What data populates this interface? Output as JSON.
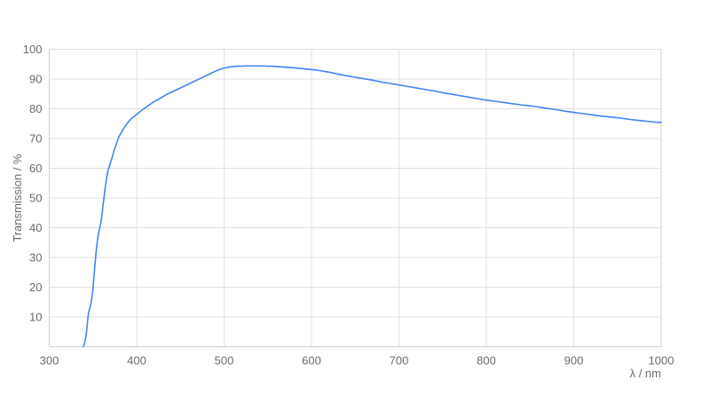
{
  "chart_data": {
    "type": "line",
    "title": "",
    "xlabel": "λ / nm",
    "ylabel": "Transmission / %",
    "xlim": [
      300,
      1000
    ],
    "ylim": [
      0,
      100
    ],
    "x_ticks": [
      300,
      400,
      500,
      600,
      700,
      800,
      900,
      1000
    ],
    "y_ticks": [
      10,
      20,
      30,
      40,
      50,
      60,
      70,
      80,
      90,
      100
    ],
    "grid": true,
    "legend": false,
    "colors": {
      "line": "#4285f4",
      "grid": "#e0e0e0",
      "axis_border": "#cfcfcf",
      "tick_text": "#6b6b6b",
      "background": "#ffffff"
    },
    "series": [
      {
        "name": "Transmission",
        "points": [
          [
            339,
            0
          ],
          [
            340,
            0.8
          ],
          [
            341,
            2
          ],
          [
            342,
            3.5
          ],
          [
            343,
            6
          ],
          [
            344,
            9
          ],
          [
            345,
            11.5
          ],
          [
            346,
            12.6
          ],
          [
            347,
            13.6
          ],
          [
            348,
            15
          ],
          [
            349,
            17
          ],
          [
            350,
            19.5
          ],
          [
            351,
            23
          ],
          [
            352,
            26.5
          ],
          [
            353,
            30
          ],
          [
            354,
            33
          ],
          [
            355,
            35.5
          ],
          [
            356,
            37.5
          ],
          [
            357,
            39
          ],
          [
            358,
            40.3
          ],
          [
            359,
            41.6
          ],
          [
            360,
            43.8
          ],
          [
            361,
            46.3
          ],
          [
            362,
            48.7
          ],
          [
            363,
            51
          ],
          [
            364,
            53.5
          ],
          [
            365,
            55.5
          ],
          [
            366,
            57.3
          ],
          [
            367,
            58.9
          ],
          [
            368,
            59.9
          ],
          [
            369,
            60.9
          ],
          [
            370,
            61.8
          ],
          [
            372,
            63.7
          ],
          [
            374,
            65.8
          ],
          [
            376,
            67.5
          ],
          [
            378,
            69.2
          ],
          [
            380,
            70.8
          ],
          [
            382,
            71.8
          ],
          [
            384,
            72.8
          ],
          [
            386,
            73.8
          ],
          [
            388,
            74.6
          ],
          [
            390,
            75.4
          ],
          [
            392,
            76.1
          ],
          [
            394,
            76.7
          ],
          [
            396,
            77.2
          ],
          [
            398,
            77.6
          ],
          [
            400,
            78.1
          ],
          [
            405,
            79.3
          ],
          [
            410,
            80.4
          ],
          [
            415,
            81.4
          ],
          [
            420,
            82.4
          ],
          [
            425,
            83.2
          ],
          [
            430,
            84.1
          ],
          [
            435,
            84.9
          ],
          [
            440,
            85.6
          ],
          [
            445,
            86.3
          ],
          [
            450,
            87
          ],
          [
            455,
            87.7
          ],
          [
            460,
            88.4
          ],
          [
            465,
            89.1
          ],
          [
            470,
            89.8
          ],
          [
            475,
            90.5
          ],
          [
            480,
            91.2
          ],
          [
            485,
            91.9
          ],
          [
            490,
            92.6
          ],
          [
            495,
            93.2
          ],
          [
            500,
            93.7
          ],
          [
            505,
            94
          ],
          [
            510,
            94.2
          ],
          [
            515,
            94.3
          ],
          [
            520,
            94.3
          ],
          [
            525,
            94.4
          ],
          [
            530,
            94.4
          ],
          [
            535,
            94.4
          ],
          [
            540,
            94.4
          ],
          [
            545,
            94.4
          ],
          [
            550,
            94.3
          ],
          [
            555,
            94.3
          ],
          [
            560,
            94.2
          ],
          [
            565,
            94.1
          ],
          [
            570,
            94
          ],
          [
            575,
            93.9
          ],
          [
            580,
            93.8
          ],
          [
            585,
            93.6
          ],
          [
            590,
            93.5
          ],
          [
            595,
            93.3
          ],
          [
            600,
            93.2
          ],
          [
            610,
            92.8
          ],
          [
            620,
            92.3
          ],
          [
            630,
            91.7
          ],
          [
            640,
            91.1
          ],
          [
            650,
            90.6
          ],
          [
            660,
            90.1
          ],
          [
            670,
            89.6
          ],
          [
            680,
            89
          ],
          [
            690,
            88.5
          ],
          [
            700,
            88
          ],
          [
            710,
            87.5
          ],
          [
            720,
            87
          ],
          [
            730,
            86.5
          ],
          [
            740,
            86
          ],
          [
            750,
            85.4
          ],
          [
            760,
            84.9
          ],
          [
            770,
            84.4
          ],
          [
            780,
            83.9
          ],
          [
            790,
            83.4
          ],
          [
            800,
            82.9
          ],
          [
            810,
            82.5
          ],
          [
            820,
            82.1
          ],
          [
            830,
            81.7
          ],
          [
            840,
            81.3
          ],
          [
            850,
            81
          ],
          [
            860,
            80.6
          ],
          [
            870,
            80.1
          ],
          [
            880,
            79.7
          ],
          [
            890,
            79.2
          ],
          [
            900,
            78.8
          ],
          [
            910,
            78.4
          ],
          [
            920,
            78
          ],
          [
            930,
            77.6
          ],
          [
            940,
            77.3
          ],
          [
            950,
            77
          ],
          [
            960,
            76.6
          ],
          [
            970,
            76.2
          ],
          [
            980,
            75.9
          ],
          [
            990,
            75.6
          ],
          [
            1000,
            75.4
          ]
        ]
      }
    ]
  }
}
